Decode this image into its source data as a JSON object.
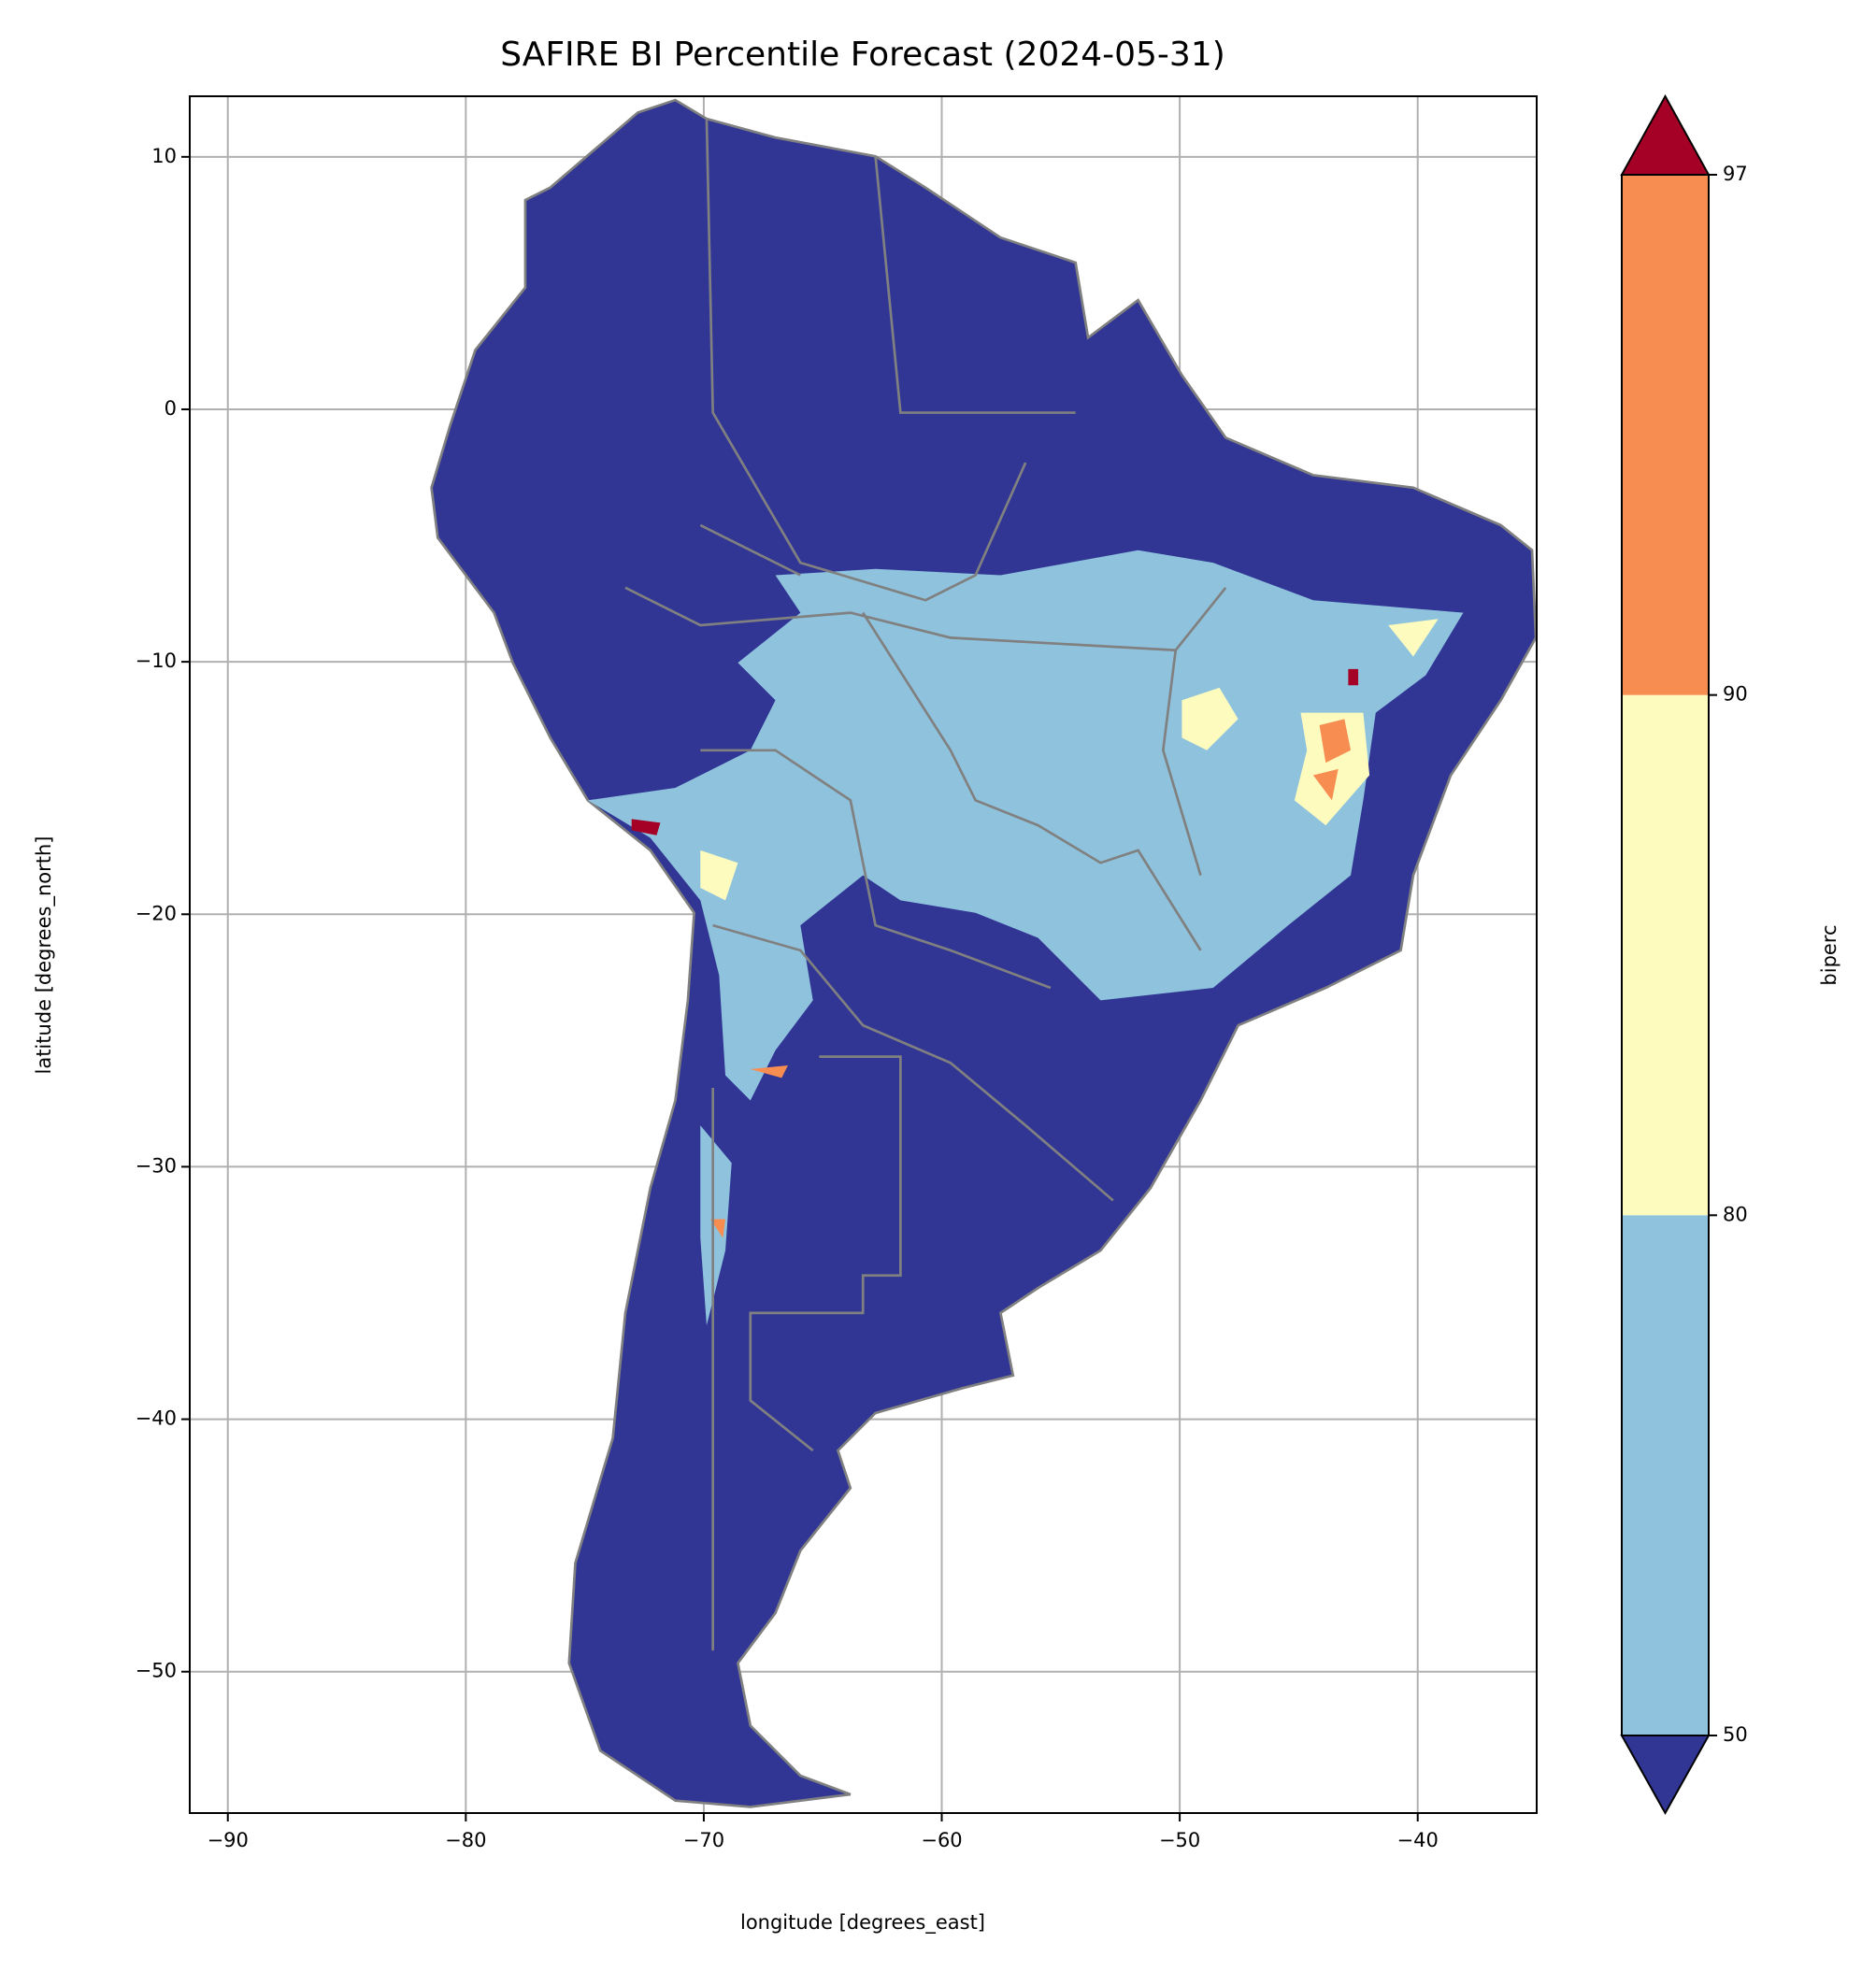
{
  "chart_data": {
    "type": "raster",
    "title": "SAFIRE BI Percentile Forecast (2024-05-31)",
    "xlabel": "longitude [degrees_east]",
    "ylabel": "latitude [degrees_north]",
    "xlim": [
      -91.6,
      -35
    ],
    "ylim": [
      -55.6,
      12.4
    ],
    "xticks": [
      {
        "value": -90,
        "label": "−90"
      },
      {
        "value": -80,
        "label": "−80"
      },
      {
        "value": -70,
        "label": "−70"
      },
      {
        "value": -60,
        "label": "−60"
      },
      {
        "value": -50,
        "label": "−50"
      },
      {
        "value": -40,
        "label": "−40"
      }
    ],
    "yticks": [
      10,
      0,
      {
        "value": -10,
        "label": "−10"
      },
      {
        "value": -20,
        "label": "−20"
      },
      {
        "value": -30,
        "label": "−30"
      },
      {
        "value": -40,
        "label": "−40"
      },
      {
        "value": -50,
        "label": "−50"
      }
    ],
    "grid": true,
    "colorbar": {
      "label": "biperc",
      "boundaries": [
        50,
        80,
        90,
        97
      ],
      "colors": [
        "#8fc3dd",
        "#fefbbf",
        "#f88d52"
      ],
      "under_color": "#313695",
      "over_color": "#a50026"
    }
  }
}
